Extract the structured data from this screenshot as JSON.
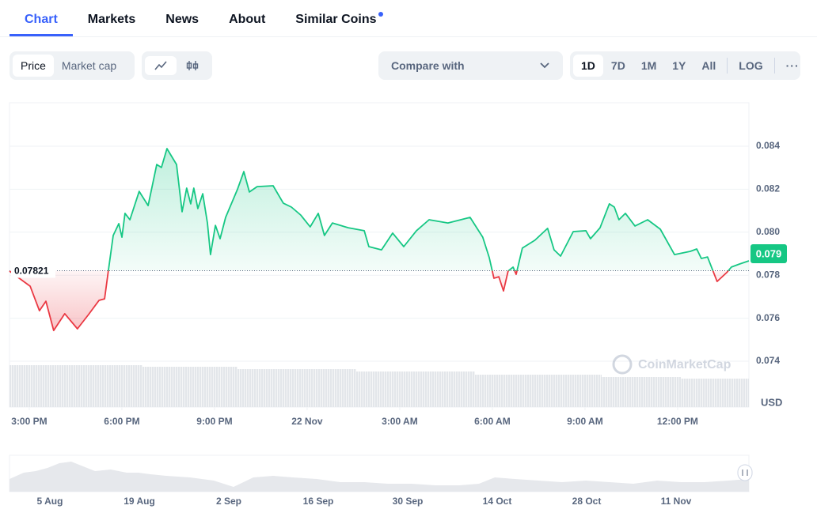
{
  "tabs": [
    "Chart",
    "Markets",
    "News",
    "About",
    "Similar Coins"
  ],
  "toolbar": {
    "metric": [
      "Price",
      "Market cap"
    ],
    "compare": "Compare with",
    "ranges": [
      "1D",
      "7D",
      "1M",
      "1Y",
      "All"
    ],
    "log": "LOG"
  },
  "chart_data": {
    "type": "line",
    "x": [
      14.36,
      15.03,
      15.33,
      15.54,
      15.79,
      16.15,
      16.56,
      16.92,
      17.26,
      17.44,
      17.56,
      17.72,
      17.9,
      18.0,
      18.1,
      18.26,
      18.56,
      18.85,
      19.13,
      19.28,
      19.46,
      19.77,
      19.95,
      20.1,
      20.23,
      20.33,
      20.46,
      20.62,
      20.77,
      20.87,
      21.03,
      21.18,
      21.36,
      21.74,
      21.95,
      22.13,
      22.38,
      22.9,
      23.23,
      23.49,
      23.79,
      24.1,
      24.36,
      24.56,
      24.82,
      25.33,
      25.85,
      26.0,
      26.41,
      26.77,
      27.13,
      27.54,
      27.95,
      28.56,
      29.28,
      29.69,
      29.9,
      30.05,
      30.21,
      30.36,
      30.51,
      30.67,
      30.77,
      30.97,
      31.38,
      31.79,
      32.0,
      32.21,
      32.62,
      33.03,
      33.18,
      33.49,
      33.79,
      33.95,
      34.1,
      34.31,
      34.62,
      35.03,
      35.44,
      35.9,
      36.41,
      36.62,
      36.77,
      36.97,
      37.28,
      37.59,
      37.74,
      38.0,
      38.31
    ],
    "values": [
      0.07819,
      0.07749,
      0.07635,
      0.07679,
      0.07543,
      0.07621,
      0.07551,
      0.07617,
      0.07683,
      0.0769,
      0.07819,
      0.07985,
      0.0804,
      0.07977,
      0.08088,
      0.08058,
      0.0819,
      0.08124,
      0.08315,
      0.08301,
      0.08389,
      0.08315,
      0.08095,
      0.08205,
      0.08132,
      0.08205,
      0.0811,
      0.08179,
      0.08043,
      0.07896,
      0.08032,
      0.0797,
      0.08069,
      0.08198,
      0.08282,
      0.08187,
      0.08212,
      0.08216,
      0.08135,
      0.08117,
      0.0808,
      0.08025,
      0.08088,
      0.07985,
      0.08043,
      0.08021,
      0.08007,
      0.07933,
      0.07918,
      0.07996,
      0.07933,
      0.08007,
      0.08058,
      0.08043,
      0.08069,
      0.07977,
      0.07882,
      0.07786,
      0.07793,
      0.07727,
      0.07819,
      0.07838,
      0.07804,
      0.07926,
      0.07963,
      0.08018,
      0.07918,
      0.07889,
      0.08003,
      0.08007,
      0.0797,
      0.08021,
      0.08132,
      0.08117,
      0.08058,
      0.08088,
      0.08029,
      0.08058,
      0.08014,
      0.07896,
      0.07911,
      0.07922,
      0.07878,
      0.07885,
      0.07771,
      0.07812,
      0.07838,
      0.07852,
      0.07867
    ],
    "baseline": 0.07821,
    "current_price": 0.079,
    "up_color": "#16c784",
    "down_color": "#ea3943",
    "xlim": [
      14.36,
      38.31
    ],
    "xticks": [
      {
        "value": 15,
        "label": "3:00 PM"
      },
      {
        "value": 18,
        "label": "6:00 PM"
      },
      {
        "value": 21,
        "label": "9:00 PM"
      },
      {
        "value": 24,
        "label": "22 Nov"
      },
      {
        "value": 27,
        "label": "3:00 AM"
      },
      {
        "value": 30,
        "label": "6:00 AM"
      },
      {
        "value": 33,
        "label": "9:00 AM"
      },
      {
        "value": 36,
        "label": "12:00 PM"
      }
    ],
    "ylim": [
      0.07187,
      0.08602
    ],
    "yticks": [
      0.074,
      0.076,
      0.078,
      {
        "value": 0.08,
        "label": "0.080"
      },
      0.082,
      0.084
    ],
    "y_unit": "USD",
    "watermark": "CoinMarketCap",
    "grid": true
  },
  "navigator": {
    "labels": [
      "5 Aug",
      "19 Aug",
      "2 Sep",
      "16 Sep",
      "30 Sep",
      "14 Oct",
      "28 Oct",
      "11 Nov"
    ]
  }
}
